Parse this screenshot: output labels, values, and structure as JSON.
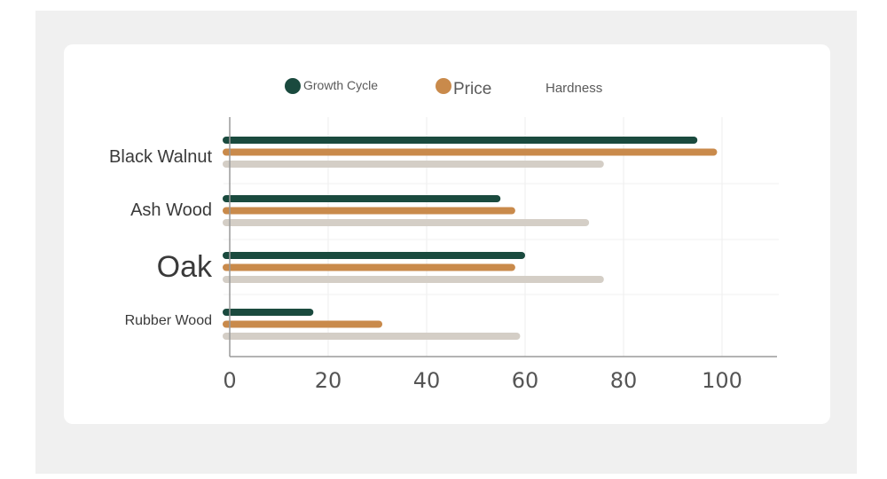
{
  "chart_data": {
    "type": "bar",
    "orientation": "horizontal",
    "categories": [
      "Black Walnut",
      "Ash Wood",
      "Oak",
      "Rubber Wood"
    ],
    "series": [
      {
        "name": "Growth Cycle",
        "color": "#1a4a3e",
        "values": [
          95,
          55,
          60,
          17
        ]
      },
      {
        "name": "Price",
        "color": "#c98a4b",
        "values": [
          99,
          58,
          58,
          31
        ]
      },
      {
        "name": "Hardness",
        "color": "#d4cec6",
        "values": [
          76,
          73,
          76,
          59
        ]
      }
    ],
    "xticks": [
      "0",
      "20",
      "40",
      "60",
      "80",
      "100"
    ],
    "xlim": [
      0,
      110
    ],
    "grid": "vertical",
    "legend_position": "top"
  }
}
